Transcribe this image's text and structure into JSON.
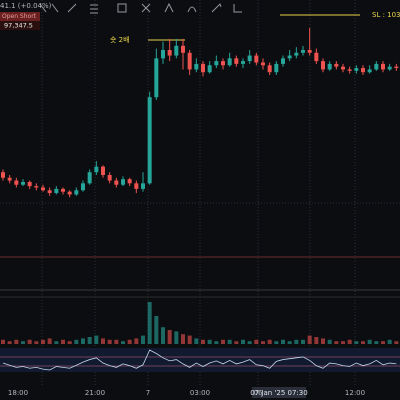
{
  "header": {
    "price_change": "41.1 (+0.04%)",
    "order_label": "Open Short",
    "order_price": "97,347.5"
  },
  "annotations": {
    "short": "숏 2배",
    "stop_loss": "SL : 103,00"
  },
  "x_labels": [
    "18:00",
    "21:00",
    "7",
    "03:00",
    "06",
    "07 Jan '25  07:30",
    "12:00"
  ],
  "chart_data": {
    "type": "candlestick",
    "up_color": "#26a69a",
    "down_color": "#ef5350",
    "ylim": [
      96000,
      97800
    ],
    "candles": [
      {
        "open": 96560,
        "high": 96580,
        "low": 96500,
        "close": 96520
      },
      {
        "open": 96520,
        "high": 96540,
        "low": 96480,
        "close": 96500
      },
      {
        "open": 96500,
        "high": 96520,
        "low": 96450,
        "close": 96470
      },
      {
        "open": 96470,
        "high": 96510,
        "low": 96460,
        "close": 96490
      },
      {
        "open": 96490,
        "high": 96500,
        "low": 96440,
        "close": 96460
      },
      {
        "open": 96460,
        "high": 96480,
        "low": 96430,
        "close": 96450
      },
      {
        "open": 96450,
        "high": 96470,
        "low": 96420,
        "close": 96430
      },
      {
        "open": 96430,
        "high": 96450,
        "low": 96390,
        "close": 96410
      },
      {
        "open": 96410,
        "high": 96460,
        "low": 96400,
        "close": 96440
      },
      {
        "open": 96440,
        "high": 96450,
        "low": 96400,
        "close": 96420
      },
      {
        "open": 96420,
        "high": 96430,
        "low": 96380,
        "close": 96400
      },
      {
        "open": 96400,
        "high": 96450,
        "low": 96390,
        "close": 96430
      },
      {
        "open": 96430,
        "high": 96500,
        "low": 96420,
        "close": 96480
      },
      {
        "open": 96480,
        "high": 96580,
        "low": 96470,
        "close": 96560
      },
      {
        "open": 96560,
        "high": 96640,
        "low": 96540,
        "close": 96600
      },
      {
        "open": 96600,
        "high": 96610,
        "low": 96520,
        "close": 96540
      },
      {
        "open": 96540,
        "high": 96560,
        "low": 96480,
        "close": 96500
      },
      {
        "open": 96500,
        "high": 96520,
        "low": 96450,
        "close": 96470
      },
      {
        "open": 96470,
        "high": 96530,
        "low": 96460,
        "close": 96510
      },
      {
        "open": 96510,
        "high": 96520,
        "low": 96460,
        "close": 96480
      },
      {
        "open": 96480,
        "high": 96500,
        "low": 96410,
        "close": 96440
      },
      {
        "open": 96440,
        "high": 96560,
        "low": 96420,
        "close": 96480
      },
      {
        "open": 96480,
        "high": 97140,
        "low": 96470,
        "close": 97100
      },
      {
        "open": 97100,
        "high": 97450,
        "low": 97080,
        "close": 97380
      },
      {
        "open": 97380,
        "high": 97500,
        "low": 97340,
        "close": 97440
      },
      {
        "open": 97440,
        "high": 97520,
        "low": 97360,
        "close": 97400
      },
      {
        "open": 97400,
        "high": 97520,
        "low": 97380,
        "close": 97470
      },
      {
        "open": 97470,
        "high": 97520,
        "low": 97300,
        "close": 97420
      },
      {
        "open": 97420,
        "high": 97440,
        "low": 97260,
        "close": 97300
      },
      {
        "open": 97300,
        "high": 97380,
        "low": 97280,
        "close": 97340
      },
      {
        "open": 97340,
        "high": 97360,
        "low": 97250,
        "close": 97280
      },
      {
        "open": 97280,
        "high": 97360,
        "low": 97270,
        "close": 97330
      },
      {
        "open": 97330,
        "high": 97400,
        "low": 97310,
        "close": 97360
      },
      {
        "open": 97360,
        "high": 97380,
        "low": 97300,
        "close": 97330
      },
      {
        "open": 97330,
        "high": 97420,
        "low": 97320,
        "close": 97380
      },
      {
        "open": 97380,
        "high": 97400,
        "low": 97320,
        "close": 97340
      },
      {
        "open": 97340,
        "high": 97380,
        "low": 97310,
        "close": 97360
      },
      {
        "open": 97360,
        "high": 97440,
        "low": 97340,
        "close": 97400
      },
      {
        "open": 97400,
        "high": 97420,
        "low": 97330,
        "close": 97350
      },
      {
        "open": 97350,
        "high": 97380,
        "low": 97300,
        "close": 97330
      },
      {
        "open": 97330,
        "high": 97350,
        "low": 97260,
        "close": 97280
      },
      {
        "open": 97280,
        "high": 97360,
        "low": 97260,
        "close": 97340
      },
      {
        "open": 97340,
        "high": 97400,
        "low": 97320,
        "close": 97380
      },
      {
        "open": 97380,
        "high": 97440,
        "low": 97360,
        "close": 97400
      },
      {
        "open": 97400,
        "high": 97460,
        "low": 97380,
        "close": 97420
      },
      {
        "open": 97420,
        "high": 97470,
        "low": 97400,
        "close": 97440
      },
      {
        "open": 97440,
        "high": 97600,
        "low": 97400,
        "close": 97420
      },
      {
        "open": 97420,
        "high": 97450,
        "low": 97340,
        "close": 97360
      },
      {
        "open": 97360,
        "high": 97380,
        "low": 97280,
        "close": 97300
      },
      {
        "open": 97300,
        "high": 97360,
        "low": 97290,
        "close": 97340
      },
      {
        "open": 97340,
        "high": 97360,
        "low": 97300,
        "close": 97320
      },
      {
        "open": 97320,
        "high": 97340,
        "low": 97280,
        "close": 97300
      },
      {
        "open": 97300,
        "high": 97320,
        "low": 97270,
        "close": 97290
      },
      {
        "open": 97290,
        "high": 97330,
        "low": 97270,
        "close": 97310
      },
      {
        "open": 97310,
        "high": 97330,
        "low": 97260,
        "close": 97280
      },
      {
        "open": 97280,
        "high": 97330,
        "low": 97270,
        "close": 97300
      },
      {
        "open": 97300,
        "high": 97360,
        "low": 97290,
        "close": 97340
      },
      {
        "open": 97340,
        "high": 97360,
        "low": 97280,
        "close": 97300
      },
      {
        "open": 97300,
        "high": 97340,
        "low": 97290,
        "close": 97320
      },
      {
        "open": 97320,
        "high": 97340,
        "low": 97290,
        "close": 97310
      }
    ],
    "volume": [
      3,
      2,
      3,
      2,
      3,
      2,
      3,
      4,
      2,
      3,
      2,
      3,
      4,
      5,
      6,
      4,
      3,
      3,
      2,
      3,
      4,
      6,
      30,
      20,
      12,
      10,
      9,
      7,
      6,
      4,
      3,
      3,
      2,
      3,
      3,
      2,
      3,
      2,
      3,
      2,
      3,
      2,
      3,
      2,
      3,
      3,
      6,
      5,
      4,
      3,
      2,
      2,
      3,
      2,
      2,
      3,
      2,
      2,
      3,
      2
    ],
    "oscillator": [
      50,
      45,
      40,
      42,
      38,
      40,
      36,
      34,
      42,
      40,
      38,
      45,
      52,
      58,
      62,
      50,
      44,
      40,
      48,
      44,
      38,
      46,
      80,
      72,
      62,
      55,
      58,
      48,
      40,
      50,
      42,
      50,
      55,
      48,
      56,
      48,
      52,
      58,
      46,
      44,
      38,
      54,
      58,
      60,
      62,
      64,
      56,
      44,
      38,
      50,
      48,
      44,
      42,
      50,
      44,
      48,
      56,
      46,
      50,
      48
    ]
  }
}
